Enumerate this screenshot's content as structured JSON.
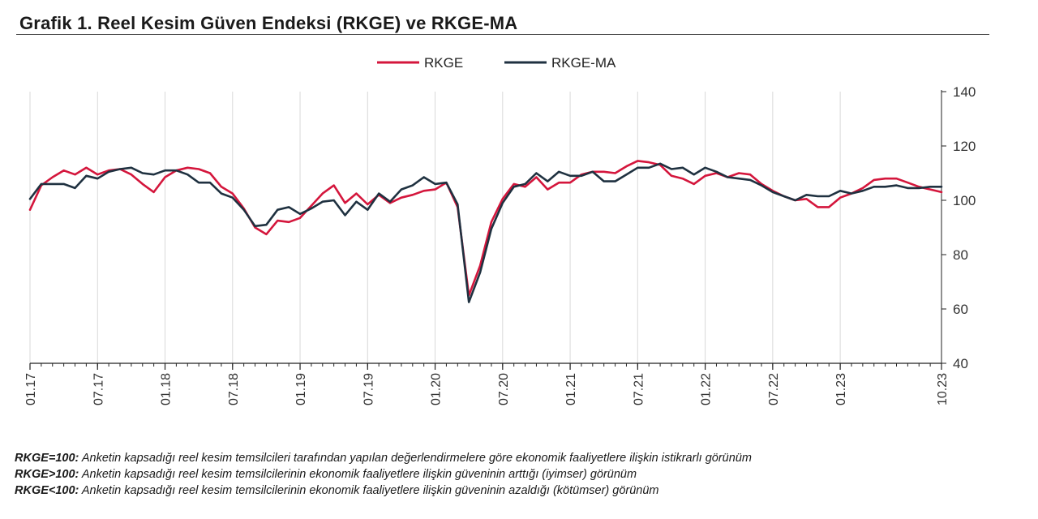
{
  "title": "Grafik 1. Reel Kesim Güven Endeksi (RKGE) ve RKGE-MA",
  "colors": {
    "rkge": "#d4163c",
    "rkge_ma": "#1f3140",
    "grid": "#d9d9d9",
    "axis": "#222222"
  },
  "chart_data": {
    "type": "line",
    "title": "Grafik 1. Reel Kesim Güven Endeksi (RKGE) ve RKGE-MA",
    "xlabel": "",
    "ylabel": "",
    "ylim": [
      40,
      140
    ],
    "yticks": [
      40,
      60,
      80,
      100,
      120,
      140
    ],
    "y_axis_side": "right",
    "grid": "vertical",
    "legend_position": "top-center",
    "x_tick_labels": [
      {
        "index": 0,
        "label": "01.17"
      },
      {
        "index": 6,
        "label": "07.17"
      },
      {
        "index": 12,
        "label": "01.18"
      },
      {
        "index": 18,
        "label": "07.18"
      },
      {
        "index": 24,
        "label": "01.19"
      },
      {
        "index": 30,
        "label": "07.19"
      },
      {
        "index": 36,
        "label": "01.20"
      },
      {
        "index": 42,
        "label": "07.20"
      },
      {
        "index": 48,
        "label": "01.21"
      },
      {
        "index": 54,
        "label": "07.21"
      },
      {
        "index": 60,
        "label": "01.22"
      },
      {
        "index": 66,
        "label": "07.22"
      },
      {
        "index": 72,
        "label": "01.23"
      },
      {
        "index": 81,
        "label": "10.23"
      }
    ],
    "series": [
      {
        "name": "RKGE",
        "color": "#d4163c",
        "values": [
          96.5,
          105.5,
          108.5,
          111,
          109.5,
          112,
          109.5,
          111,
          111.5,
          109.5,
          106,
          103,
          108.5,
          111,
          112,
          111.5,
          110,
          105,
          102.5,
          97,
          90,
          87.5,
          92.5,
          92,
          93.5,
          98,
          102.5,
          105.5,
          99,
          102.5,
          98.5,
          102,
          99,
          101,
          102,
          103.5,
          104,
          106.5,
          97.5,
          65,
          76,
          92,
          100.5,
          106,
          105,
          108.5,
          104,
          106.5,
          106.5,
          109.5,
          110.5,
          110.5,
          110,
          112.5,
          114.5,
          114,
          113,
          109,
          108,
          106,
          109,
          110,
          108.5,
          110,
          109.5,
          106,
          103.5,
          101.5,
          100,
          100.5,
          97.5,
          97.5,
          101,
          102.5,
          104.5,
          107.5,
          108,
          108,
          106.5,
          105,
          104,
          103
        ]
      },
      {
        "name": "RKGE-MA",
        "color": "#1f3140",
        "values": [
          100.5,
          106,
          106,
          106,
          104.5,
          109,
          108,
          110.5,
          111.5,
          112,
          110,
          109.5,
          111,
          111,
          109.5,
          106.5,
          106.5,
          102.5,
          101,
          96.5,
          90.5,
          91,
          96.5,
          97.5,
          95,
          97,
          99.5,
          100,
          94.5,
          99.5,
          96.5,
          102.5,
          99.5,
          104,
          105.5,
          108.5,
          106,
          106.5,
          98.5,
          62.5,
          73.5,
          89.5,
          99,
          105,
          106,
          110,
          107,
          110.5,
          109,
          109,
          110.5,
          107,
          107,
          109.5,
          112,
          112,
          113.5,
          111.5,
          112,
          109.5,
          112,
          110.5,
          108.5,
          108,
          107.5,
          105.5,
          103,
          101.5,
          100,
          102,
          101.5,
          101.5,
          103.5,
          102.5,
          103.5,
          105,
          105,
          105.5,
          104.5,
          104.5,
          105,
          105
        ]
      }
    ]
  },
  "notes": [
    {
      "key": "RKGE=100:",
      "text": " Anketin kapsadığı reel kesim temsilcileri tarafından yapılan değerlendirmelere göre ekonomik faaliyetlere ilişkin istikrarlı görünüm"
    },
    {
      "key": "RKGE>100:",
      "text": " Anketin kapsadığı reel kesim temsilcilerinin ekonomik faaliyetlere ilişkin güveninin arttığı (iyimser) görünüm"
    },
    {
      "key": "RKGE<100:",
      "text": " Anketin kapsadığı reel kesim temsilcilerinin ekonomik faaliyetlere ilişkin güveninin azaldığı (kötümser) görünüm"
    }
  ]
}
